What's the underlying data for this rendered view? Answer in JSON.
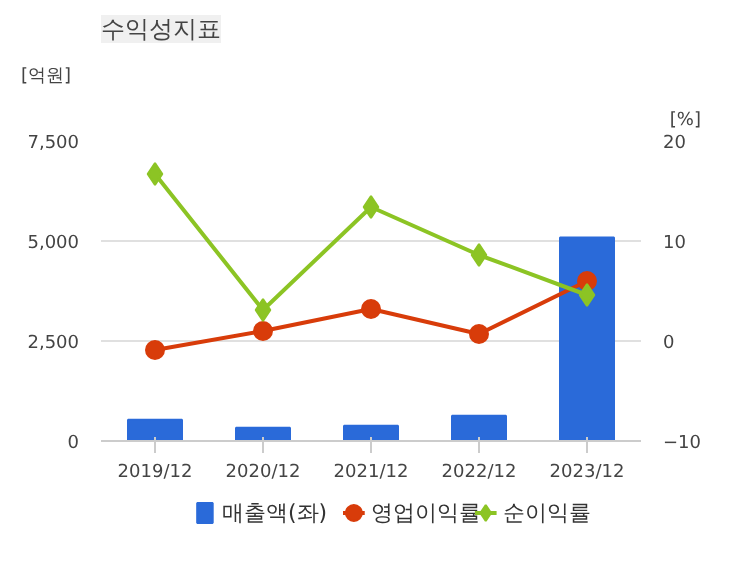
{
  "chart_data": {
    "type": "bar",
    "title": "수익성지표",
    "ylabel": "[억원]",
    "y2label": "[%]",
    "categories": [
      "2019/12",
      "2020/12",
      "2021/12",
      "2022/12",
      "2023/12"
    ],
    "series": [
      {
        "name": "매출액(좌)",
        "color": "#2a6ad9",
        "values": [
          530,
          330,
          380,
          630,
          5090
        ]
      },
      {
        "name": "영업이익률",
        "type": "line",
        "axis": "y2",
        "marker": "circle",
        "color": "#d83c0a",
        "values": [
          -0.9,
          1.0,
          3.2,
          0.7,
          6.0
        ]
      },
      {
        "name": "순이익률",
        "type": "line",
        "axis": "y2",
        "marker": "diamond",
        "color": "#8cc424",
        "values": [
          16.7,
          3.1,
          13.4,
          8.6,
          4.6
        ]
      }
    ],
    "ylim": [
      0,
      7500
    ],
    "yticks": [
      0,
      {
        "value": 2500,
        "label": "2,500"
      },
      {
        "value": 5000,
        "label": "5,000"
      },
      {
        "value": 7500,
        "label": "7,500"
      }
    ],
    "y2lim": [
      -10,
      20
    ],
    "y2ticks": [
      -10,
      0,
      10,
      20
    ],
    "grid": "y",
    "legend": "bottom"
  }
}
